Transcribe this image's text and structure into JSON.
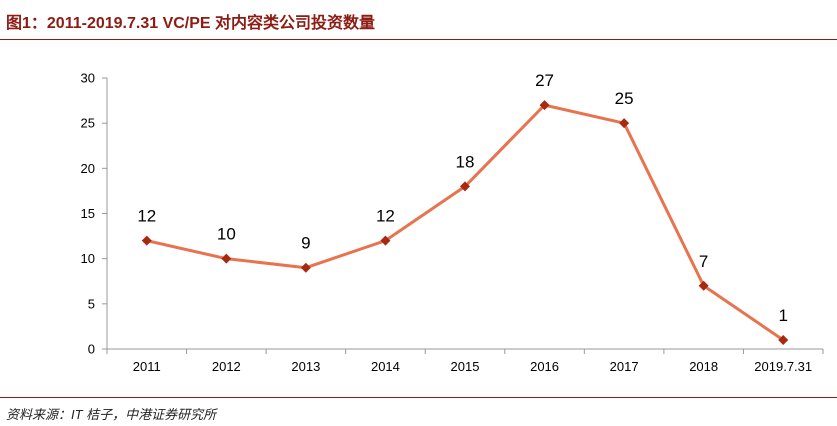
{
  "header": {
    "title": "图1：2011-2019.7.31 VC/PE 对内容类公司投资数量"
  },
  "footer": {
    "source": "资料来源：IT 桔子，中港证券研究所"
  },
  "colors": {
    "line": "#e8734f",
    "marker": "#a8290f",
    "title": "#8c1c14",
    "rule": "#8c1c14"
  },
  "chart_data": {
    "type": "line",
    "categories": [
      "2011",
      "2012",
      "2013",
      "2014",
      "2015",
      "2016",
      "2017",
      "2018",
      "2019.7.31"
    ],
    "series": [
      {
        "values": [
          12,
          10,
          9,
          12,
          18,
          27,
          25,
          7,
          1
        ]
      }
    ],
    "ylim": [
      0,
      30
    ],
    "yticks": [
      0,
      5,
      10,
      15,
      20,
      25,
      30
    ],
    "data_labels": true,
    "grid": false,
    "legend": "none",
    "marker": "diamond"
  }
}
